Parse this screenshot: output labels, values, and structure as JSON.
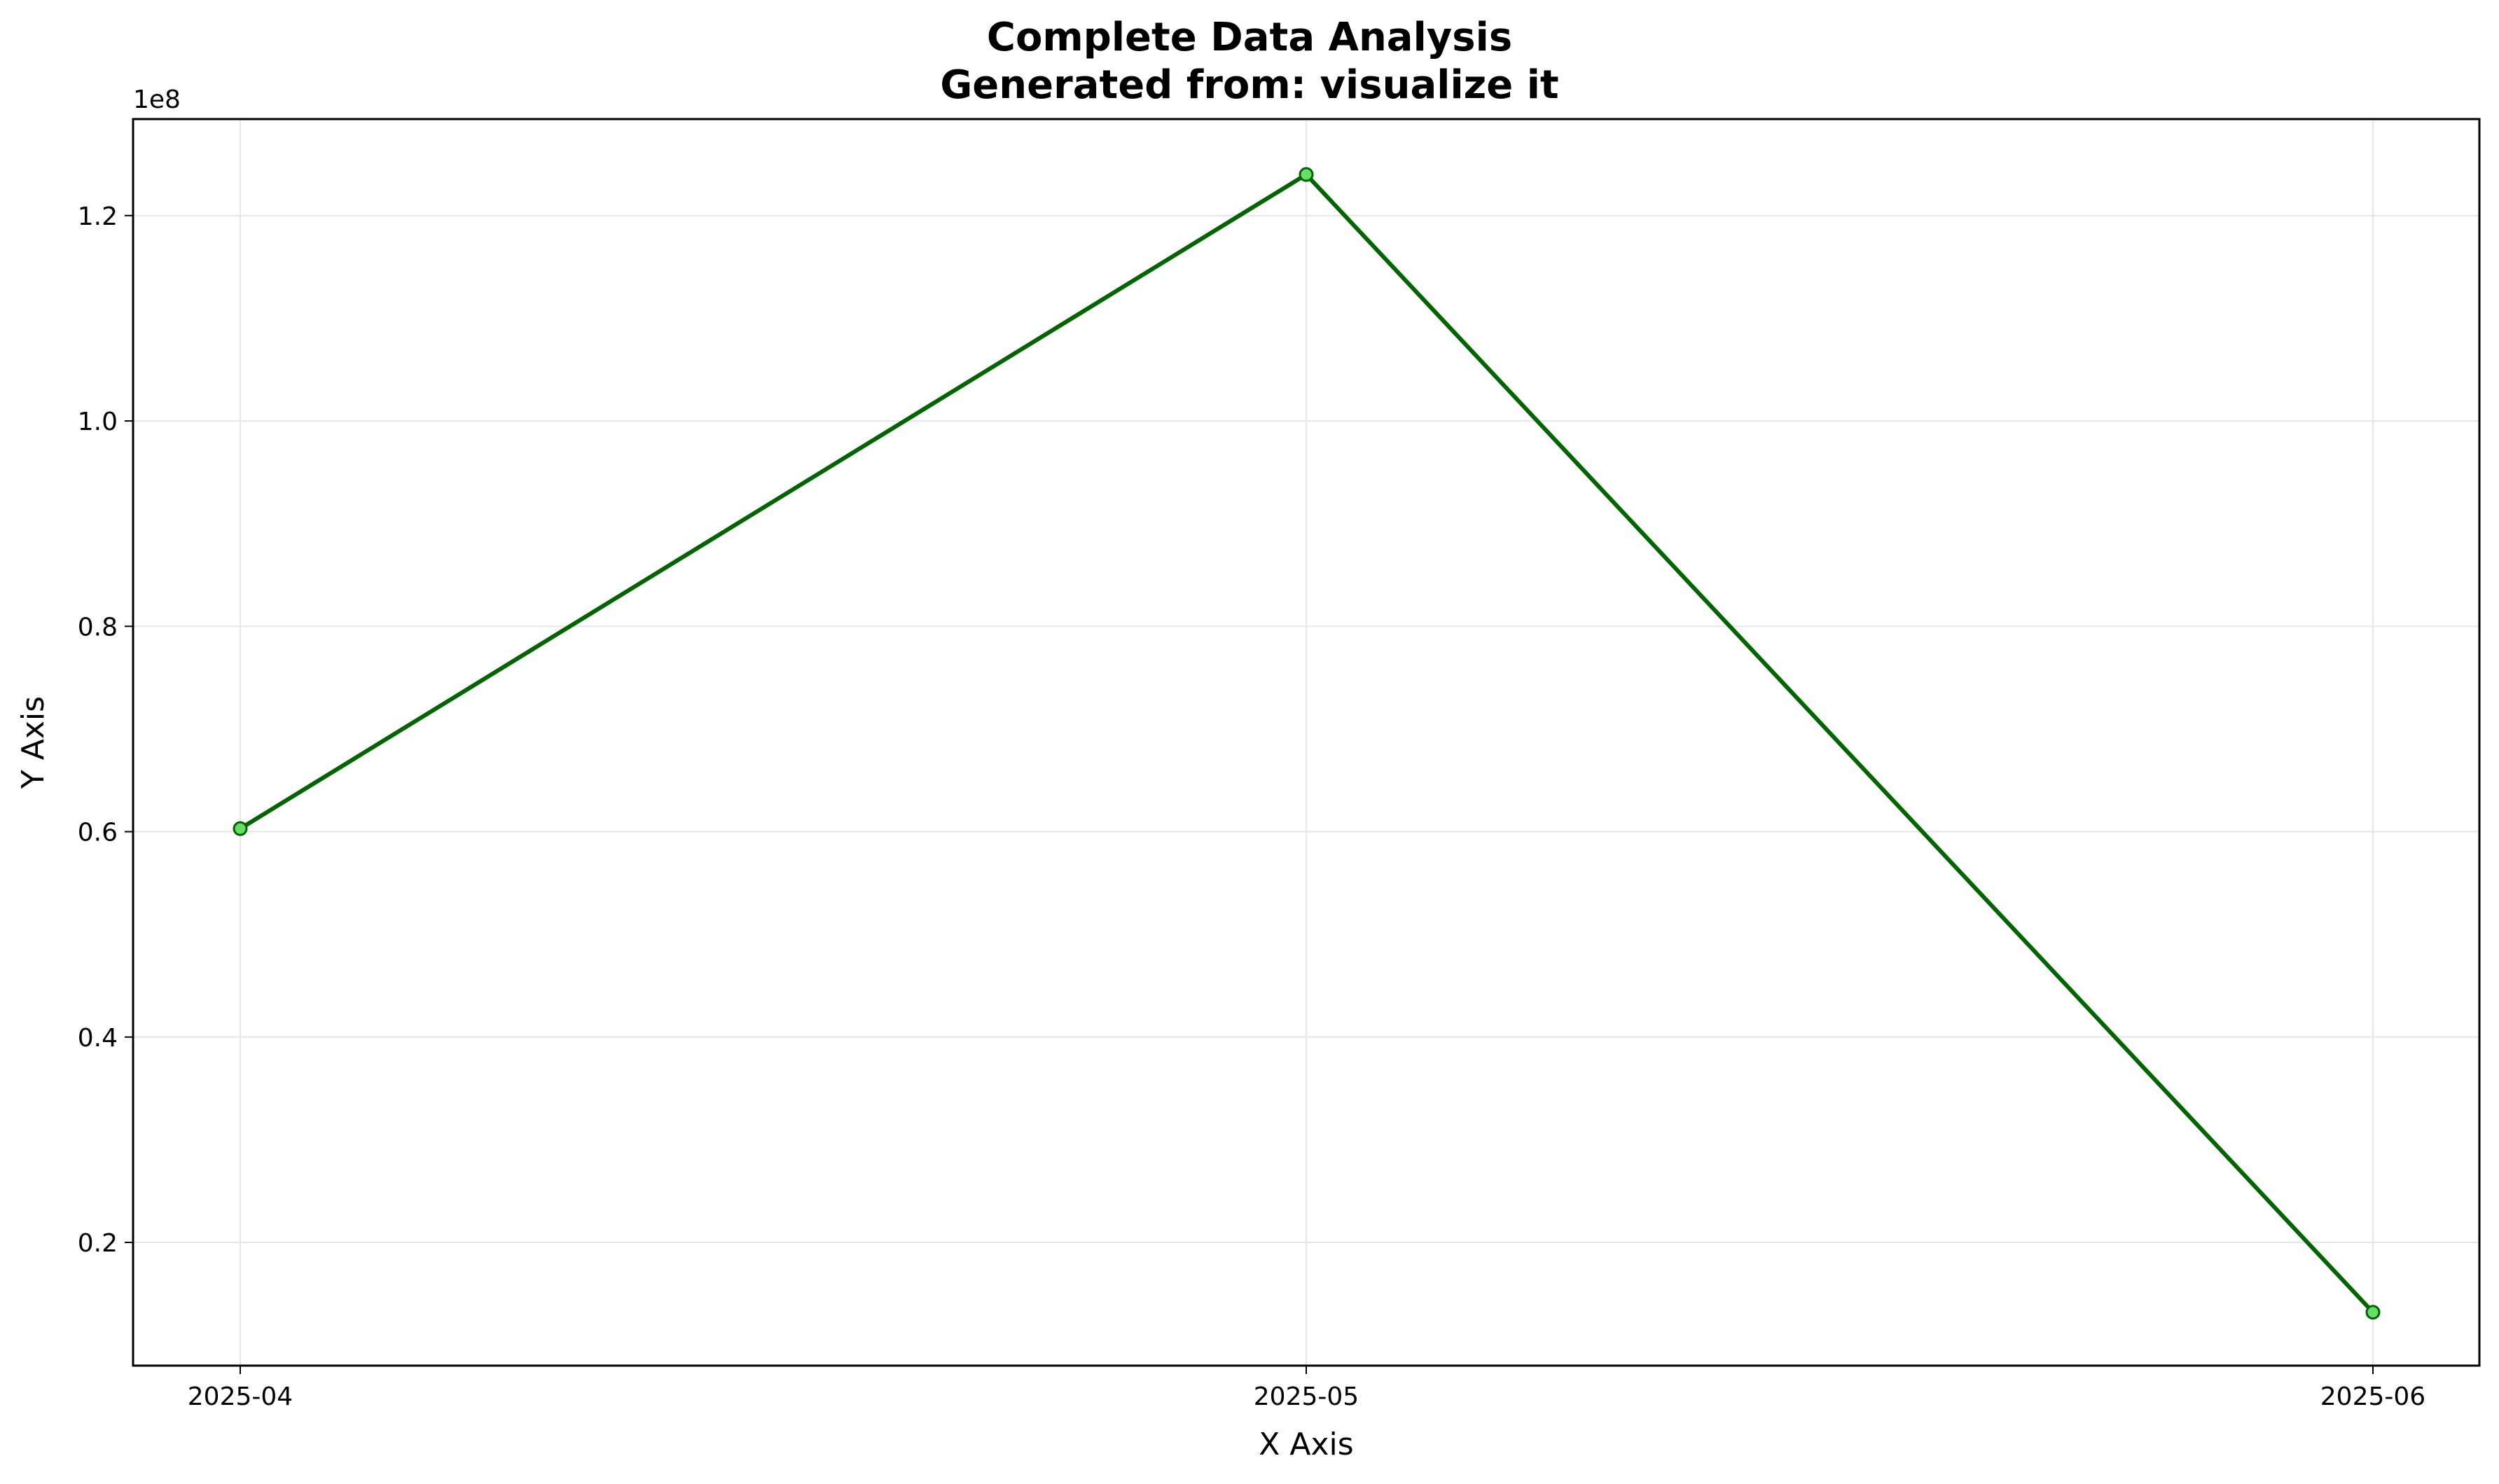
{
  "chart_data": {
    "type": "line",
    "title": "Complete Data Analysis",
    "subtitle": "Generated from: visualize it",
    "xlabel": "X Axis",
    "ylabel": "Y Axis",
    "y_offset_label": "1e8",
    "categories": [
      "2025-04",
      "2025-05",
      "2025-06"
    ],
    "series": [
      {
        "values": [
          60300000,
          124000000,
          13200000
        ],
        "color": "#006400",
        "marker_fill": "#66dd66"
      }
    ],
    "y_ticks": [
      0.2,
      0.4,
      0.6,
      0.8,
      1.0,
      1.2
    ],
    "y_tick_labels": [
      "0.2",
      "0.4",
      "0.6",
      "0.8",
      "1.0",
      "1.2"
    ],
    "y_scale": 100000000,
    "ylim": [
      8000000,
      129400000
    ],
    "grid": true,
    "colors": {
      "grid": "#e6e6e6",
      "axes": "#000000"
    }
  }
}
